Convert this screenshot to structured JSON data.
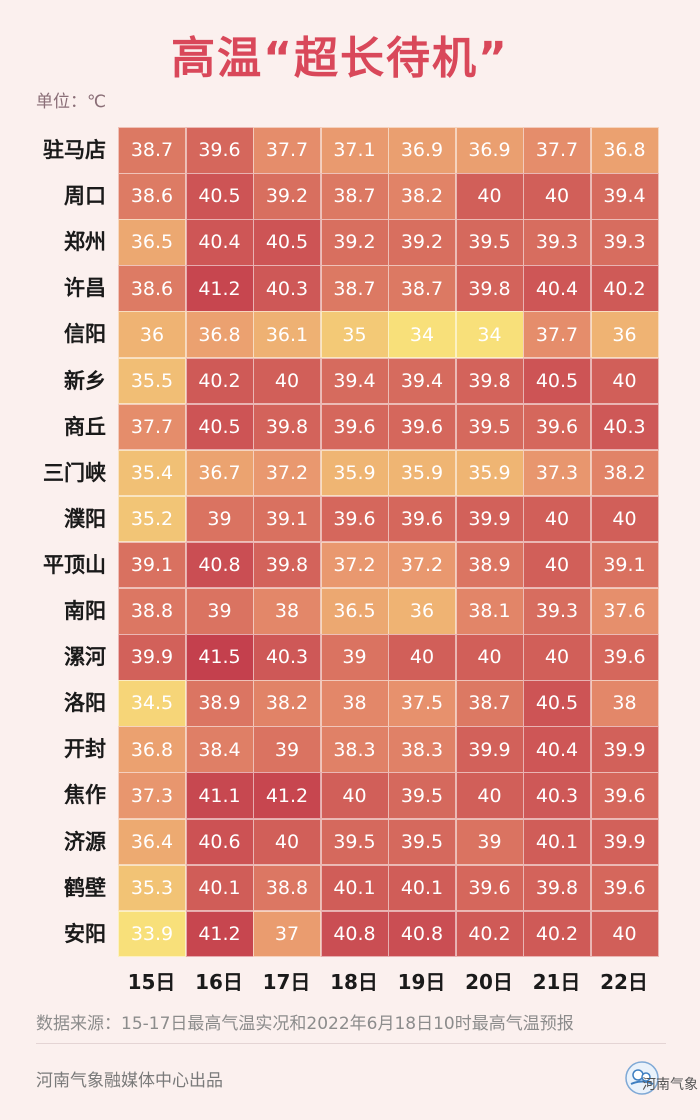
{
  "title": "高温“超长待机”",
  "unit_label": "单位：℃",
  "source_note": "数据来源：15-17日最高气温实况和2022年6月18日10时最高气温预报",
  "producer": "河南气象融媒体中心出品",
  "logo_text": "河南气象",
  "colors": {
    "title": "#d9485a",
    "low": "#f8e07a",
    "mid": "#e8946e",
    "high": "#c4404d",
    "background": "#fbf0ee"
  },
  "chart_data": {
    "type": "heatmap",
    "title": "高温“超长待机”",
    "unit": "℃",
    "columns": [
      "15日",
      "16日",
      "17日",
      "18日",
      "19日",
      "20日",
      "21日",
      "22日"
    ],
    "rows": [
      "驻马店",
      "周口",
      "郑州",
      "许昌",
      "信阳",
      "新乡",
      "商丘",
      "三门峡",
      "濮阳",
      "平顶山",
      "南阳",
      "漯河",
      "洛阳",
      "开封",
      "焦作",
      "济源",
      "鹤壁",
      "安阳"
    ],
    "values": [
      [
        "38.7",
        "39.6",
        "37.7",
        "37.1",
        "36.9",
        "36.9",
        "37.7",
        "36.8"
      ],
      [
        "38.6",
        "40.5",
        "39.2",
        "38.7",
        "38.2",
        "40",
        "40",
        "39.4"
      ],
      [
        "36.5",
        "40.4",
        "40.5",
        "39.2",
        "39.2",
        "39.5",
        "39.3",
        "39.3"
      ],
      [
        "38.6",
        "41.2",
        "40.3",
        "38.7",
        "38.7",
        "39.8",
        "40.4",
        "40.2"
      ],
      [
        "36",
        "36.8",
        "36.1",
        "35",
        "34",
        "34",
        "37.7",
        "36"
      ],
      [
        "35.5",
        "40.2",
        "40",
        "39.4",
        "39.4",
        "39.8",
        "40.5",
        "40"
      ],
      [
        "37.7",
        "40.5",
        "39.8",
        "39.6",
        "39.6",
        "39.5",
        "39.6",
        "40.3"
      ],
      [
        "35.4",
        "36.7",
        "37.2",
        "35.9",
        "35.9",
        "35.9",
        "37.3",
        "38.2"
      ],
      [
        "35.2",
        "39",
        "39.1",
        "39.6",
        "39.6",
        "39.9",
        "40",
        "40"
      ],
      [
        "39.1",
        "40.8",
        "39.8",
        "37.2",
        "37.2",
        "38.9",
        "40",
        "39.1"
      ],
      [
        "38.8",
        "39",
        "38",
        "36.5",
        "36",
        "38.1",
        "39.3",
        "37.6"
      ],
      [
        "39.9",
        "41.5",
        "40.3",
        "39",
        "40",
        "40",
        "40",
        "39.6"
      ],
      [
        "34.5",
        "38.9",
        "38.2",
        "38",
        "37.5",
        "38.7",
        "40.5",
        "38"
      ],
      [
        "36.8",
        "38.4",
        "39",
        "38.3",
        "38.3",
        "39.9",
        "40.4",
        "39.9"
      ],
      [
        "37.3",
        "41.1",
        "41.2",
        "40",
        "39.5",
        "40",
        "40.3",
        "39.6"
      ],
      [
        "36.4",
        "40.6",
        "40",
        "39.5",
        "39.5",
        "39",
        "40.1",
        "39.9"
      ],
      [
        "35.3",
        "40.1",
        "38.8",
        "40.1",
        "40.1",
        "39.6",
        "39.8",
        "39.6"
      ],
      [
        "33.9",
        "41.2",
        "37",
        "40.8",
        "40.8",
        "40.2",
        "40.2",
        "40"
      ]
    ],
    "color_range": [
      34,
      41.5
    ]
  }
}
